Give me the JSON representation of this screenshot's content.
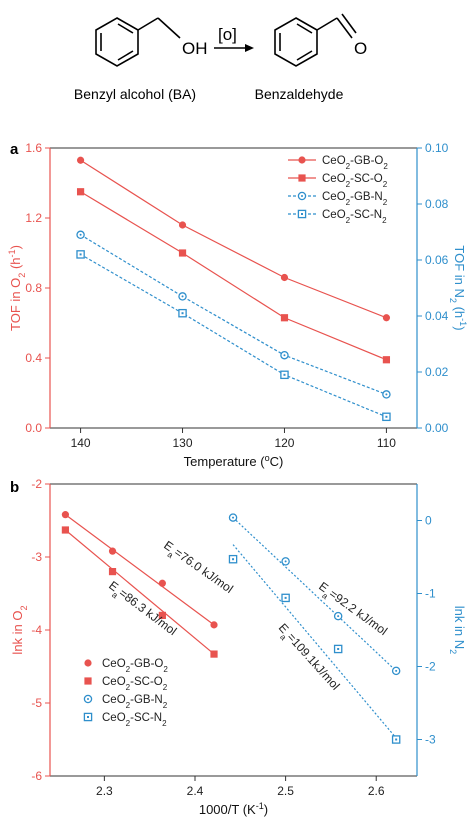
{
  "scheme": {
    "reactant_label": "Benzyl alcohol (BA)",
    "reactant_group": "OH",
    "arrow_label": "[o]",
    "product_label": "Benzaldehyde",
    "product_group": "O"
  },
  "colors": {
    "o2": "#e8534f",
    "n2": "#2f8fcc",
    "axis": "#333333"
  },
  "chart_data": [
    {
      "panel_label": "a",
      "type": "line",
      "x": [
        140,
        130,
        120,
        110
      ],
      "xlabel": "Temperature (",
      "xlabel_sup": "o",
      "xlabel_end": "C)",
      "xlim": [
        143,
        107
      ],
      "xticks": [
        "140",
        "130",
        "120",
        "110"
      ],
      "ylabel_left": "TOF in O",
      "ylabel_left_sub": "2",
      "ylabel_left_end": " (h",
      "ylabel_left_sup": "-1",
      "ylabel_left_close": ")",
      "ylim_left": [
        0,
        1.6
      ],
      "yticks_left": [
        "0.0",
        "0.4",
        "0.8",
        "1.2",
        "1.6"
      ],
      "ylabel_right": "TOF in N",
      "ylabel_right_sub": "2",
      "ylabel_right_end": " (h",
      "ylabel_right_sup": "-1",
      "ylabel_right_close": ")",
      "ylim_right": [
        0,
        0.1
      ],
      "yticks_right": [
        "0.00",
        "0.02",
        "0.04",
        "0.06",
        "0.08",
        "0.10"
      ],
      "legend_position": "top-right",
      "series": [
        {
          "name": "CeO2-GB-O2",
          "axis": "left",
          "marker": "circle-filled",
          "values": [
            1.53,
            1.16,
            0.86,
            0.63
          ]
        },
        {
          "name": "CeO2-SC-O2",
          "axis": "left",
          "marker": "square-filled",
          "values": [
            1.35,
            1.0,
            0.63,
            0.39
          ]
        },
        {
          "name": "CeO2-GB-N2",
          "axis": "right",
          "marker": "circle-open",
          "values": [
            0.069,
            0.047,
            0.026,
            0.012
          ]
        },
        {
          "name": "CeO2-SC-N2",
          "axis": "right",
          "marker": "square-open",
          "values": [
            0.062,
            0.041,
            0.019,
            0.004
          ]
        }
      ]
    },
    {
      "panel_label": "b",
      "type": "scatter",
      "xlabel": "1000/T (K",
      "xlabel_sup": "-1",
      "xlabel_end": ")",
      "xlim": [
        2.24,
        2.645
      ],
      "xticks": [
        "2.3",
        "2.4",
        "2.5",
        "2.6"
      ],
      "ylabel_left": "lnk in O",
      "ylabel_left_sub": "2",
      "ylim_left": [
        -6,
        -2
      ],
      "yticks_left": [
        "-6",
        "-5",
        "-4",
        "-3",
        "-2"
      ],
      "ylabel_right": "lnk in N",
      "ylabel_right_sub": "2",
      "ylim_right": [
        -3.5,
        0.5
      ],
      "yticks_right": [
        "-3",
        "-2",
        "-1",
        "0"
      ],
      "legend_position": "bottom-left",
      "series": [
        {
          "name": "CeO2-GB-O2",
          "axis": "left",
          "marker": "circle-filled",
          "x": [
            2.257,
            2.309,
            2.364,
            2.421
          ],
          "y": [
            -2.42,
            -2.92,
            -3.36,
            -3.93
          ]
        },
        {
          "name": "CeO2-SC-O2",
          "axis": "left",
          "marker": "square-filled",
          "x": [
            2.257,
            2.309,
            2.364,
            2.421
          ],
          "y": [
            -2.63,
            -3.2,
            -3.8,
            -4.33
          ]
        },
        {
          "name": "CeO2-GB-N2",
          "axis": "right",
          "marker": "circle-open",
          "x": [
            2.442,
            2.5,
            2.558,
            2.622
          ],
          "y": [
            0.04,
            -0.56,
            -1.31,
            -2.06
          ]
        },
        {
          "name": "CeO2-SC-N2",
          "axis": "right",
          "marker": "square-open",
          "x": [
            2.442,
            2.5,
            2.558,
            2.622
          ],
          "y": [
            -0.53,
            -1.06,
            -1.76,
            -3.0
          ]
        }
      ],
      "fits": [
        {
          "axis": "left",
          "x": [
            2.257,
            2.421
          ],
          "y": [
            -2.42,
            -3.93
          ]
        },
        {
          "axis": "left",
          "x": [
            2.257,
            2.421
          ],
          "y": [
            -2.63,
            -4.33
          ]
        },
        {
          "axis": "right",
          "x": [
            2.442,
            2.622
          ],
          "y": [
            0.04,
            -2.06
          ]
        },
        {
          "axis": "right",
          "x": [
            2.442,
            2.622
          ],
          "y": [
            -0.33,
            -2.98
          ]
        }
      ],
      "annotations": [
        {
          "text_pre": "E",
          "text_sub": "a",
          "text_post": "=76.0 kJ/mol"
        },
        {
          "text_pre": "E",
          "text_sub": "a",
          "text_post": "=86.3 kJ/mol"
        },
        {
          "text_pre": "E",
          "text_sub": "a",
          "text_post": "=92.2 kJ/mol"
        },
        {
          "text_pre": "E",
          "text_sub": "a",
          "text_post": "=109.1kJ/mol"
        }
      ]
    }
  ]
}
